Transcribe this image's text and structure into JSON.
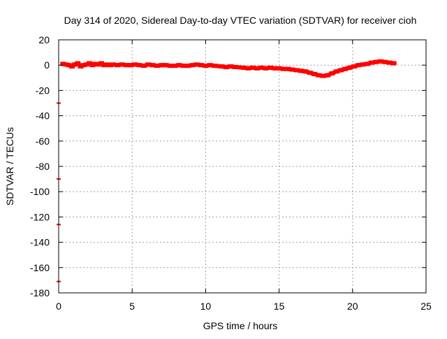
{
  "chart_data": {
    "type": "scatter",
    "title": "Day 314 of 2020, Sidereal Day-to-day VTEC variation (SDTVAR) for receiver cioh",
    "xlabel": "GPS time / hours",
    "ylabel": "SDTVAR / TECUs",
    "xlim": [
      0,
      25
    ],
    "ylim": [
      -180,
      20
    ],
    "x_ticks": [
      0,
      5,
      10,
      15,
      20,
      25
    ],
    "y_ticks": [
      20,
      0,
      -20,
      -40,
      -60,
      -80,
      -100,
      -120,
      -140,
      -160,
      -180
    ],
    "grid": true,
    "legend": "none",
    "series_color": "#ff0000",
    "outliers": [
      {
        "x": 0.0,
        "y": -30
      },
      {
        "x": 0.0,
        "y": -90
      },
      {
        "x": 0.0,
        "y": -126
      },
      {
        "x": 0.0,
        "y": -171
      }
    ],
    "series": [
      {
        "name": "SDTVAR",
        "x": [
          0.3,
          0.5,
          0.7,
          0.9,
          1.1,
          1.3,
          1.5,
          1.7,
          1.9,
          2.1,
          2.3,
          2.5,
          2.7,
          2.9,
          3.1,
          3.3,
          3.5,
          3.7,
          4.0,
          4.3,
          4.6,
          4.9,
          5.2,
          5.5,
          5.8,
          6.1,
          6.4,
          6.7,
          7.0,
          7.3,
          7.6,
          7.9,
          8.2,
          8.5,
          8.8,
          9.1,
          9.4,
          9.7,
          10.0,
          10.3,
          10.6,
          11.1,
          11.4,
          11.7,
          12.0,
          12.6,
          12.9,
          13.2,
          13.5,
          13.8,
          14.1,
          14.4,
          14.7,
          15.0,
          15.3,
          15.6,
          15.9,
          16.2,
          16.5,
          16.8,
          17.1,
          17.4,
          17.7,
          18.0,
          18.3,
          18.6,
          18.9,
          19.2,
          19.5,
          19.8,
          20.1,
          20.4,
          20.7,
          21.0,
          21.3,
          21.6,
          21.9,
          22.2,
          22.5,
          22.8
        ],
        "y": [
          1,
          0.5,
          0,
          -1,
          0.5,
          1.5,
          -1,
          0,
          0.5,
          1.5,
          0,
          1,
          0.5,
          1.5,
          0,
          0.5,
          0,
          0.5,
          0,
          0.5,
          0,
          0,
          0.5,
          0,
          -0.5,
          0.5,
          0,
          -0.5,
          0,
          0,
          -0.5,
          -0.5,
          0,
          -0.5,
          -0.5,
          0,
          0.5,
          0,
          -0.5,
          0,
          -0.5,
          -1,
          -1.5,
          -1,
          -1.5,
          -2,
          -2.5,
          -2,
          -2.5,
          -2,
          -2.5,
          -2,
          -2.5,
          -2.5,
          -3,
          -3,
          -3.5,
          -4,
          -4.5,
          -5,
          -6,
          -7,
          -8,
          -8.5,
          -8,
          -6.5,
          -5,
          -4,
          -3,
          -2,
          -1,
          0,
          0.5,
          1,
          2,
          2.5,
          3,
          2.5,
          2,
          1.5
        ]
      }
    ]
  }
}
